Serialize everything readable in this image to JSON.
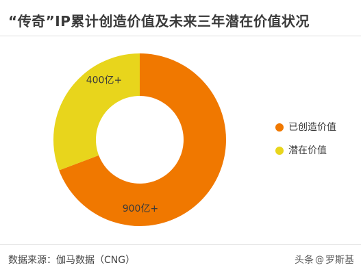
{
  "title": "“传奇”IP累计创造价值及未来三年潜在价值状况",
  "source": "数据来源：伽马数据（CNG）",
  "watermark": {
    "prefix": "头条",
    "at": "@",
    "author": "罗斯基"
  },
  "chart_data": {
    "type": "pie",
    "donut": true,
    "legend_position": "right",
    "slices": [
      {
        "name": "已创造价值",
        "value": 900,
        "label": "900亿+",
        "color": "#F07800"
      },
      {
        "name": "潜在价值",
        "value": 400,
        "label": "400亿+",
        "color": "#E8D51C"
      }
    ]
  }
}
